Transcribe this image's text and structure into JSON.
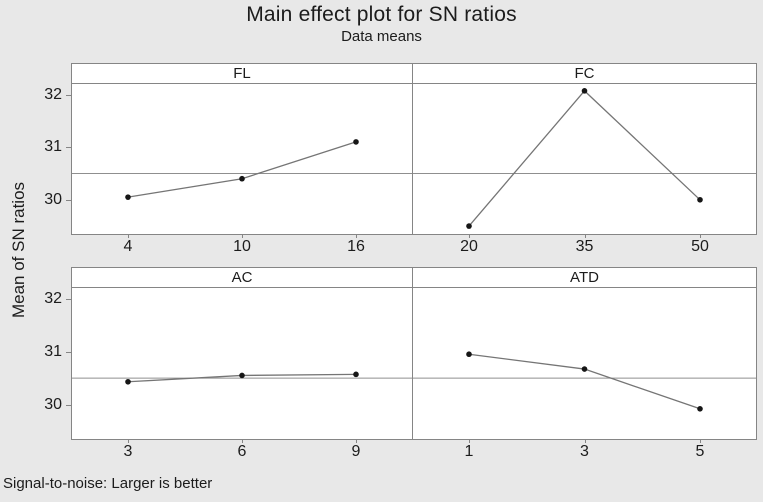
{
  "colors": {
    "background": "#e8e8e8",
    "panel_background": "#ffffff",
    "panel_border": "#858585",
    "series_line": "#757575",
    "marker": "#161616",
    "reference_line": "#8f8f8f",
    "text": "#1c1c1c"
  },
  "chart_data": {
    "type": "line",
    "title": "Main effect plot for SN ratios",
    "subtitle": "Data means",
    "ylabel": "Mean of SN ratios",
    "note": "Signal-to-noise: Larger is better",
    "layout_hint": {
      "panels_grid": "2x2",
      "shared_y_axis": true,
      "grid": false,
      "legend": false
    },
    "ylim": [
      29.35,
      32.2
    ],
    "yticks": [
      32,
      31,
      30
    ],
    "reference_line": 30.5,
    "panels": [
      {
        "label": "FL",
        "x": [
          4,
          10,
          16
        ],
        "values": [
          30.05,
          30.4,
          31.1
        ]
      },
      {
        "label": "FC",
        "x": [
          20,
          35,
          50
        ],
        "values": [
          29.5,
          32.07,
          30.0
        ]
      },
      {
        "label": "AC",
        "x": [
          3,
          6,
          9
        ],
        "values": [
          30.43,
          30.55,
          30.57
        ]
      },
      {
        "label": "ATD",
        "x": [
          1,
          3,
          5
        ],
        "values": [
          30.95,
          30.67,
          29.92
        ]
      }
    ]
  }
}
